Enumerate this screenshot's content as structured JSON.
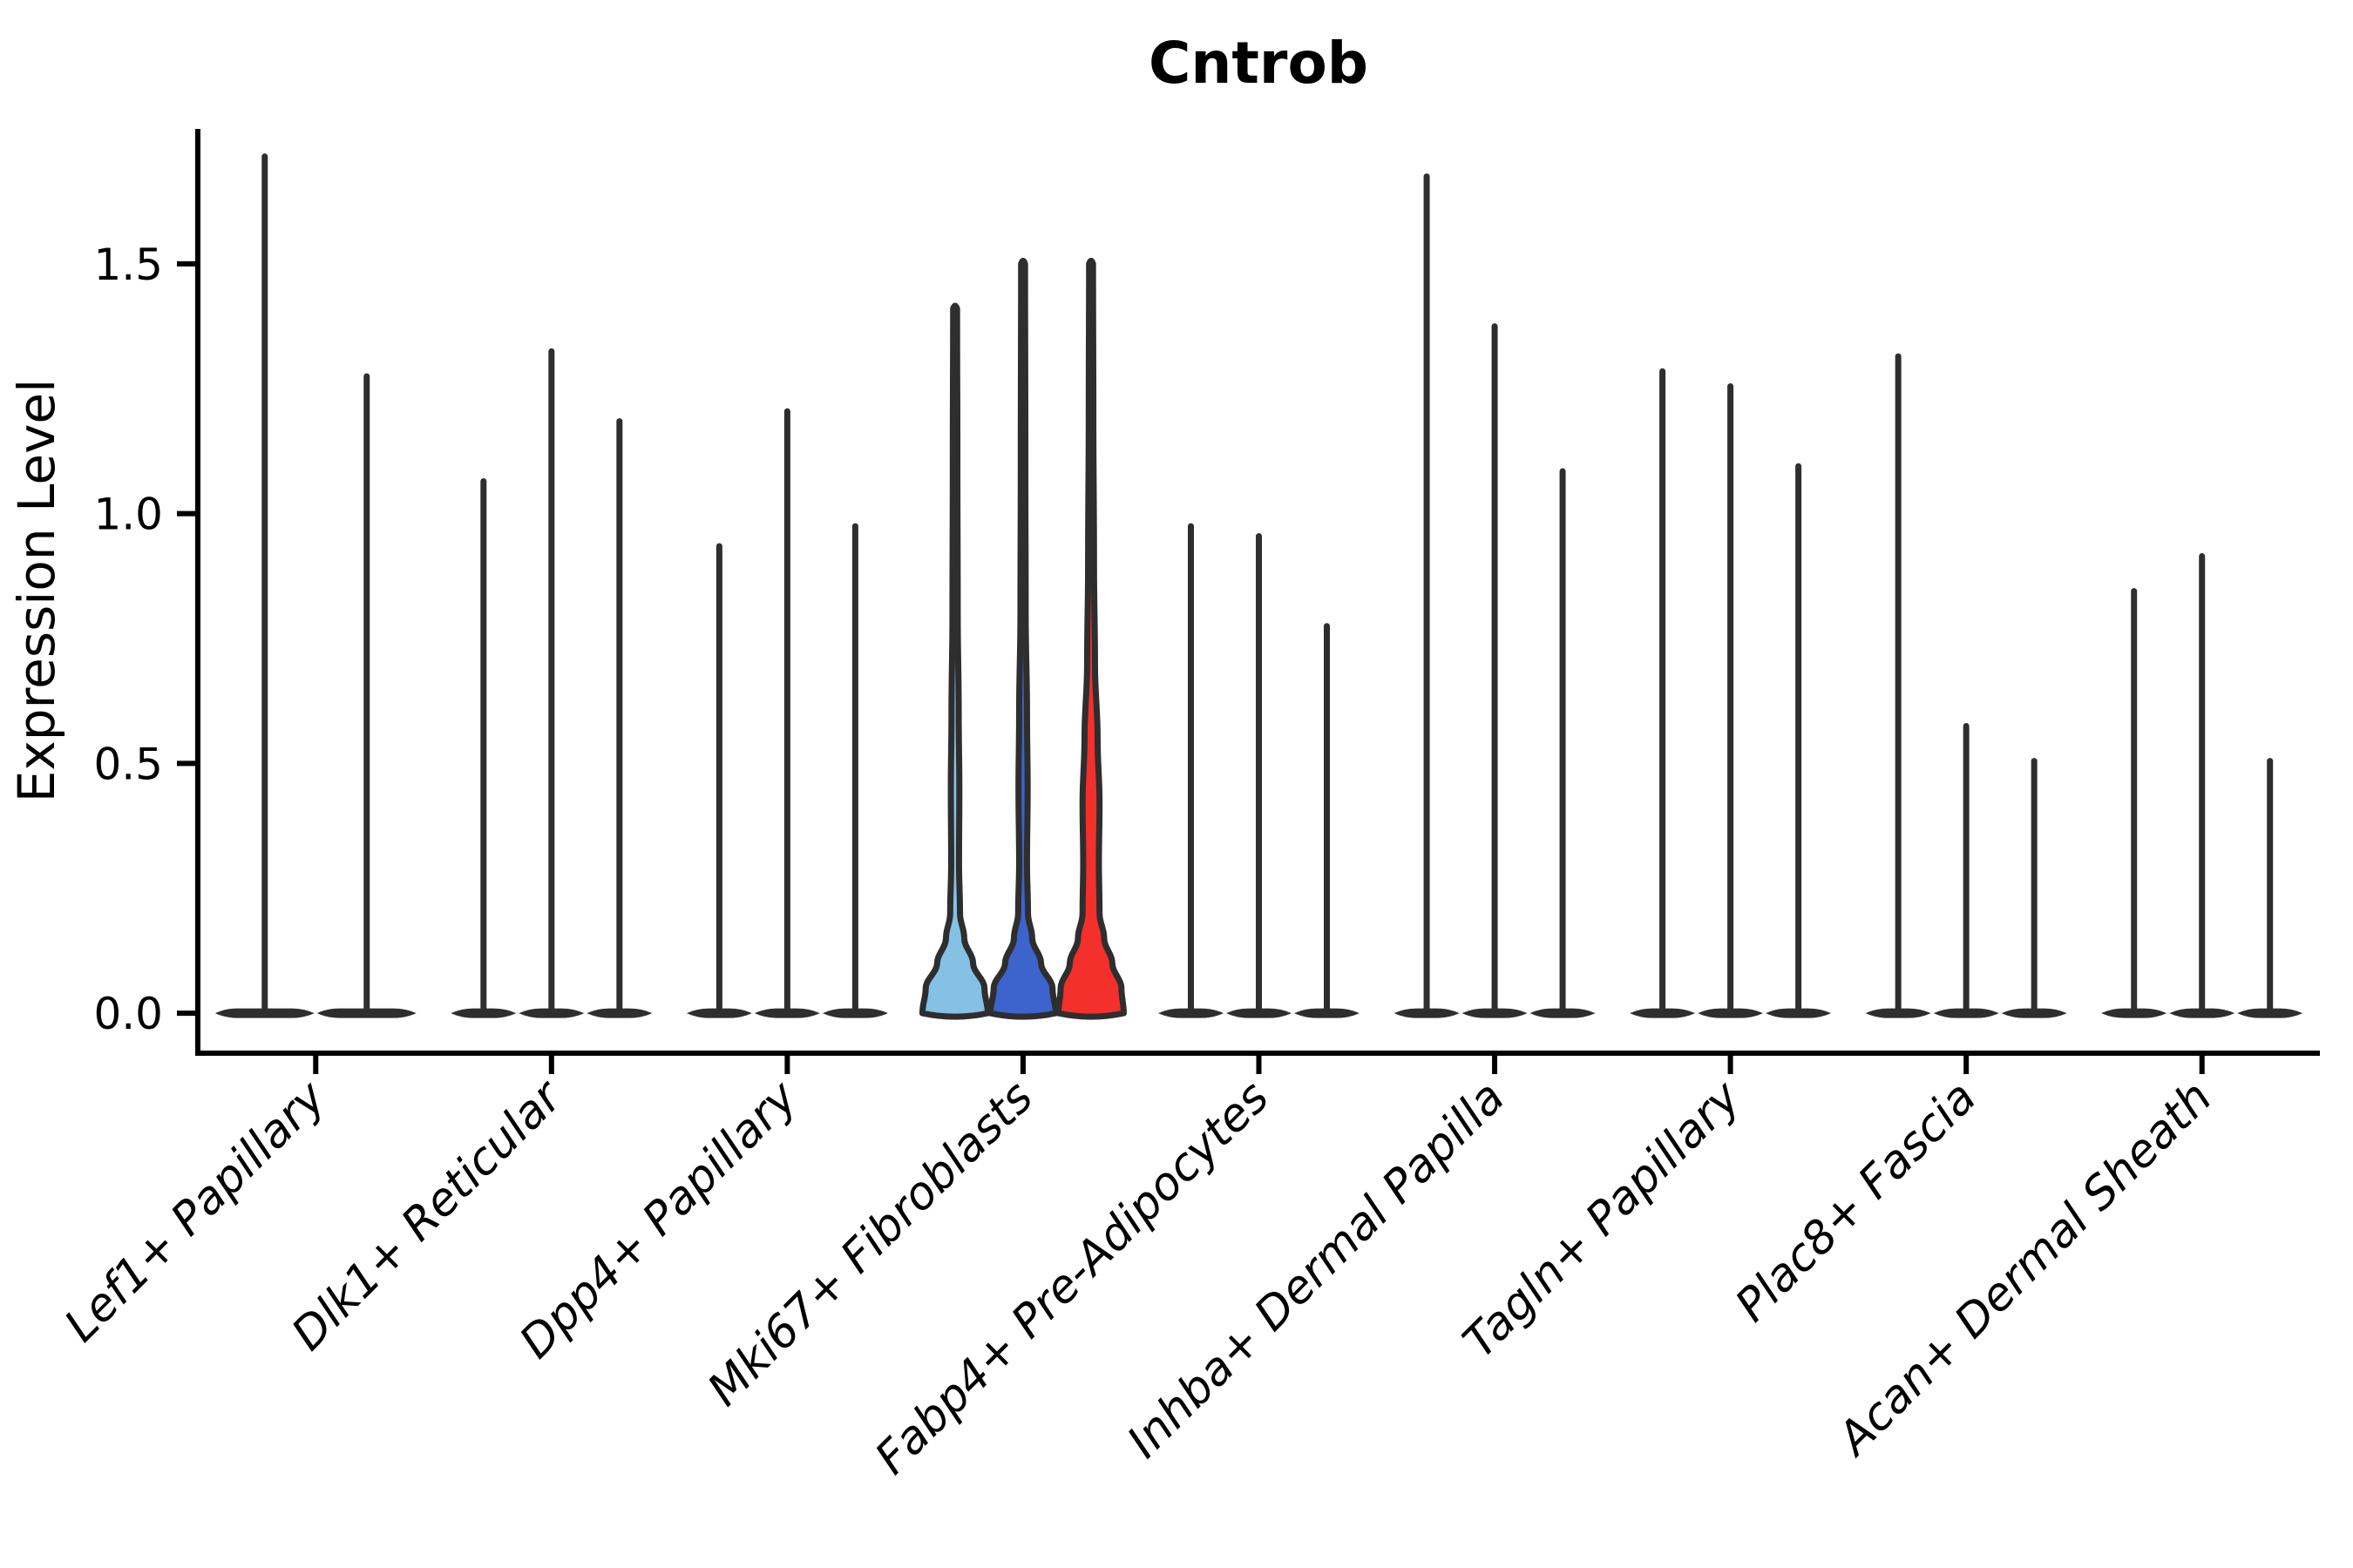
{
  "title": "Cntrob",
  "chart_data": {
    "type": "violin",
    "title": "Cntrob",
    "xlabel": "",
    "ylabel": "Expression Level",
    "ylim": [
      -0.08,
      1.77
    ],
    "yticks": [
      0.0,
      0.5,
      1.0,
      1.5
    ],
    "ytick_labels": [
      "0.0",
      "0.5",
      "1.0",
      "1.5"
    ],
    "grid": false,
    "legend": "none",
    "categories": [
      "Lef1+ Papillary",
      "Dlk1+ Reticular",
      "Dpp4+ Papillary",
      "Mki67+ Fibroblasts",
      "Fabp4+ Pre-Adipocytes",
      "Inhba+ Dermal Papilla",
      "Tagln+ Papillary",
      "Plac8+ Fascia",
      "Acan+ Dermal Sheath"
    ],
    "groups": [
      {
        "category": "Lef1+ Papillary",
        "violins": [
          {
            "max": 1.72
          },
          {
            "max": 1.28
          }
        ]
      },
      {
        "category": "Dlk1+ Reticular",
        "violins": [
          {
            "max": 1.07
          },
          {
            "max": 1.33
          },
          {
            "max": 1.19
          }
        ]
      },
      {
        "category": "Dpp4+ Papillary",
        "violins": [
          {
            "max": 0.94
          },
          {
            "max": 1.21
          },
          {
            "max": 0.98
          }
        ]
      },
      {
        "category": "Mki67+ Fibroblasts",
        "violins": [
          {
            "max": 1.41,
            "fill": "#85C1E5",
            "profile": [
              [
                0,
                1.0
              ],
              [
                0.05,
                0.9
              ],
              [
                0.1,
                0.55
              ],
              [
                0.15,
                0.28
              ],
              [
                0.2,
                0.15
              ],
              [
                0.3,
                0.12
              ],
              [
                0.45,
                0.13
              ],
              [
                0.6,
                0.11
              ],
              [
                0.8,
                0.08
              ],
              [
                1.1,
                0.07
              ],
              [
                1.41,
                0.06
              ]
            ]
          },
          {
            "max": 1.5,
            "fill": "#3D63CD",
            "profile": [
              [
                0,
                1.0
              ],
              [
                0.05,
                0.9
              ],
              [
                0.1,
                0.55
              ],
              [
                0.15,
                0.28
              ],
              [
                0.2,
                0.15
              ],
              [
                0.3,
                0.12
              ],
              [
                0.45,
                0.14
              ],
              [
                0.6,
                0.12
              ],
              [
                0.8,
                0.08
              ],
              [
                1.1,
                0.07
              ],
              [
                1.5,
                0.06
              ]
            ]
          },
          {
            "max": 1.5,
            "fill": "#F3302B",
            "profile": [
              [
                0,
                1.0
              ],
              [
                0.05,
                0.93
              ],
              [
                0.1,
                0.65
              ],
              [
                0.15,
                0.4
              ],
              [
                0.2,
                0.26
              ],
              [
                0.3,
                0.24
              ],
              [
                0.42,
                0.26
              ],
              [
                0.55,
                0.2
              ],
              [
                0.7,
                0.12
              ],
              [
                0.9,
                0.09
              ],
              [
                1.2,
                0.07
              ],
              [
                1.5,
                0.06
              ]
            ]
          }
        ]
      },
      {
        "category": "Fabp4+ Pre-Adipocytes",
        "violins": [
          {
            "max": 0.98
          },
          {
            "max": 0.96
          },
          {
            "max": 0.78
          }
        ]
      },
      {
        "category": "Inhba+ Dermal Papilla",
        "violins": [
          {
            "max": 1.68
          },
          {
            "max": 1.38
          },
          {
            "max": 1.09
          }
        ]
      },
      {
        "category": "Tagln+ Papillary",
        "violins": [
          {
            "max": 1.29
          },
          {
            "max": 1.26
          },
          {
            "max": 1.1
          }
        ]
      },
      {
        "category": "Plac8+ Fascia",
        "violins": [
          {
            "max": 1.32
          },
          {
            "max": 0.58
          },
          {
            "max": 0.51
          }
        ]
      },
      {
        "category": "Acan+ Dermal Sheath",
        "violins": [
          {
            "max": 0.85
          },
          {
            "max": 0.92
          },
          {
            "max": 0.51
          }
        ]
      }
    ],
    "style": {
      "outline_color": "#2E2E2E",
      "axis_color": "#000000",
      "highlight_fills": [
        "#85C1E5",
        "#3D63CD",
        "#F3302B"
      ]
    }
  }
}
